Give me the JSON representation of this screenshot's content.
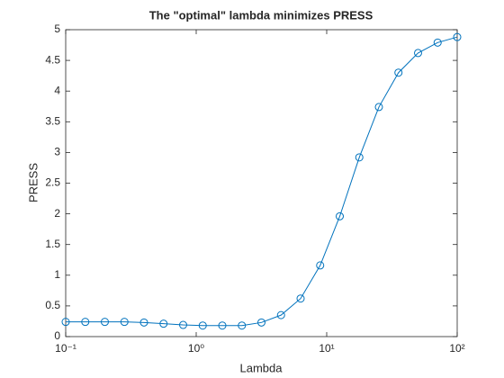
{
  "chart_data": {
    "type": "line",
    "title": "The \"optimal\" lambda minimizes PRESS",
    "xlabel": "Lambda",
    "ylabel": "PRESS",
    "xscale": "log",
    "x": [
      0.1,
      0.1413,
      0.1995,
      0.2818,
      0.3981,
      0.5623,
      0.7943,
      1.122,
      1.585,
      2.239,
      3.162,
      4.467,
      6.31,
      8.913,
      12.59,
      17.78,
      25.12,
      35.48,
      50.12,
      70.79,
      100
    ],
    "series": [
      {
        "name": "PRESS",
        "color": "#0072bd",
        "marker": "circle",
        "values": [
          0.24,
          0.24,
          0.24,
          0.24,
          0.23,
          0.21,
          0.19,
          0.18,
          0.18,
          0.18,
          0.23,
          0.35,
          0.62,
          1.16,
          1.96,
          2.92,
          3.74,
          4.3,
          4.62,
          4.79,
          4.88
        ]
      }
    ],
    "xlim": [
      0.1,
      100
    ],
    "xticks": [
      {
        "value": 0.1,
        "label": "10⁻¹"
      },
      {
        "value": 1,
        "label": "10⁰"
      },
      {
        "value": 10,
        "label": "10¹"
      },
      {
        "value": 100,
        "label": "10²"
      }
    ],
    "ylim": [
      0,
      5
    ],
    "yticks": [
      0,
      0.5,
      1,
      1.5,
      2,
      2.5,
      3,
      3.5,
      4,
      4.5,
      5
    ],
    "grid": false
  }
}
